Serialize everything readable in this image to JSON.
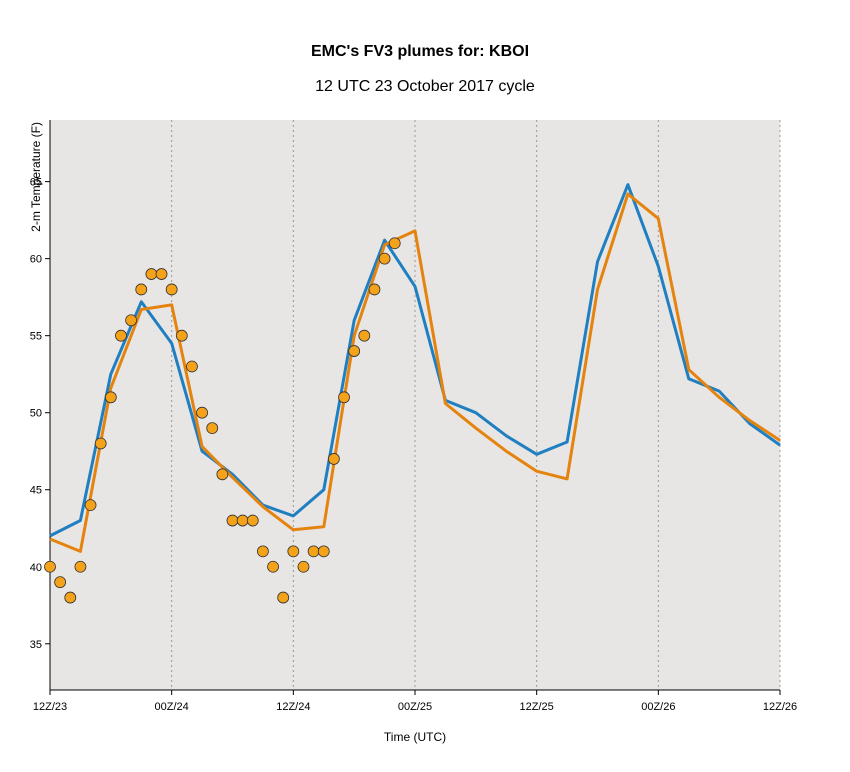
{
  "chart_data": {
    "type": "line",
    "title": "EMC's FV3 plumes for: KBOI",
    "subtitle": "12 UTC 23 October 2017 cycle",
    "xlabel": "Time (UTC)",
    "ylabel": "2-m Temperature (F)",
    "x_unit": "hours since 12Z/23",
    "xlim": [
      0,
      72
    ],
    "ylim": [
      32,
      69
    ],
    "x_ticks": [
      {
        "x": 0,
        "label": "12Z/23"
      },
      {
        "x": 12,
        "label": "00Z/24"
      },
      {
        "x": 24,
        "label": "12Z/24"
      },
      {
        "x": 36,
        "label": "00Z/25"
      },
      {
        "x": 48,
        "label": "12Z/25"
      },
      {
        "x": 60,
        "label": "00Z/26"
      },
      {
        "x": 72,
        "label": "12Z/26"
      }
    ],
    "y_ticks": [
      35,
      40,
      45,
      50,
      55,
      60,
      65
    ],
    "grid": "vertical-dotted",
    "background": "#e8e6e4",
    "series": [
      {
        "color": "#1f7fc1",
        "kind": "line",
        "points": [
          [
            0,
            42.0
          ],
          [
            3,
            43.0
          ],
          [
            6,
            52.5
          ],
          [
            9,
            57.2
          ],
          [
            12,
            54.5
          ],
          [
            15,
            47.5
          ],
          [
            18,
            46.0
          ],
          [
            21,
            44.0
          ],
          [
            24,
            43.3
          ],
          [
            27,
            45.0
          ],
          [
            30,
            56.0
          ],
          [
            33,
            61.2
          ],
          [
            36,
            58.2
          ],
          [
            39,
            50.8
          ],
          [
            42,
            50.0
          ],
          [
            45,
            48.5
          ],
          [
            48,
            47.3
          ],
          [
            51,
            48.1
          ],
          [
            54,
            59.8
          ],
          [
            57,
            64.8
          ],
          [
            60,
            59.5
          ],
          [
            63,
            52.2
          ],
          [
            66,
            51.4
          ],
          [
            69,
            49.3
          ],
          [
            72,
            47.9
          ]
        ]
      },
      {
        "color": "#e5830f",
        "kind": "line",
        "points": [
          [
            0,
            41.8
          ],
          [
            3,
            41.0
          ],
          [
            6,
            51.6
          ],
          [
            9,
            56.7
          ],
          [
            12,
            57.0
          ],
          [
            15,
            47.8
          ],
          [
            18,
            45.8
          ],
          [
            21,
            43.9
          ],
          [
            24,
            42.4
          ],
          [
            27,
            42.6
          ],
          [
            30,
            55.0
          ],
          [
            33,
            60.9
          ],
          [
            36,
            61.8
          ],
          [
            39,
            50.6
          ],
          [
            42,
            49.0
          ],
          [
            45,
            47.5
          ],
          [
            48,
            46.2
          ],
          [
            51,
            45.7
          ],
          [
            54,
            58.0
          ],
          [
            57,
            64.2
          ],
          [
            60,
            62.6
          ],
          [
            63,
            52.8
          ],
          [
            66,
            51.0
          ],
          [
            69,
            49.5
          ],
          [
            72,
            48.2
          ]
        ]
      },
      {
        "color": "#f5a21b",
        "kind": "scatter",
        "points": [
          [
            0,
            40
          ],
          [
            1,
            39
          ],
          [
            2,
            38
          ],
          [
            3,
            40
          ],
          [
            4,
            44
          ],
          [
            5,
            48
          ],
          [
            6,
            51
          ],
          [
            7,
            55
          ],
          [
            8,
            56
          ],
          [
            9,
            58
          ],
          [
            10,
            59
          ],
          [
            11,
            59
          ],
          [
            12,
            58
          ],
          [
            13,
            55
          ],
          [
            14,
            53
          ],
          [
            15,
            50
          ],
          [
            16,
            49
          ],
          [
            17,
            46
          ],
          [
            18,
            43
          ],
          [
            19,
            43
          ],
          [
            20,
            43
          ],
          [
            21,
            41
          ],
          [
            22,
            40
          ],
          [
            23,
            38
          ],
          [
            24,
            41
          ],
          [
            25,
            40
          ],
          [
            26,
            41
          ],
          [
            27,
            41
          ],
          [
            28,
            47
          ],
          [
            29,
            51
          ],
          [
            30,
            54
          ],
          [
            31,
            55
          ],
          [
            32,
            58
          ],
          [
            33,
            60
          ],
          [
            34,
            61
          ]
        ]
      }
    ]
  }
}
